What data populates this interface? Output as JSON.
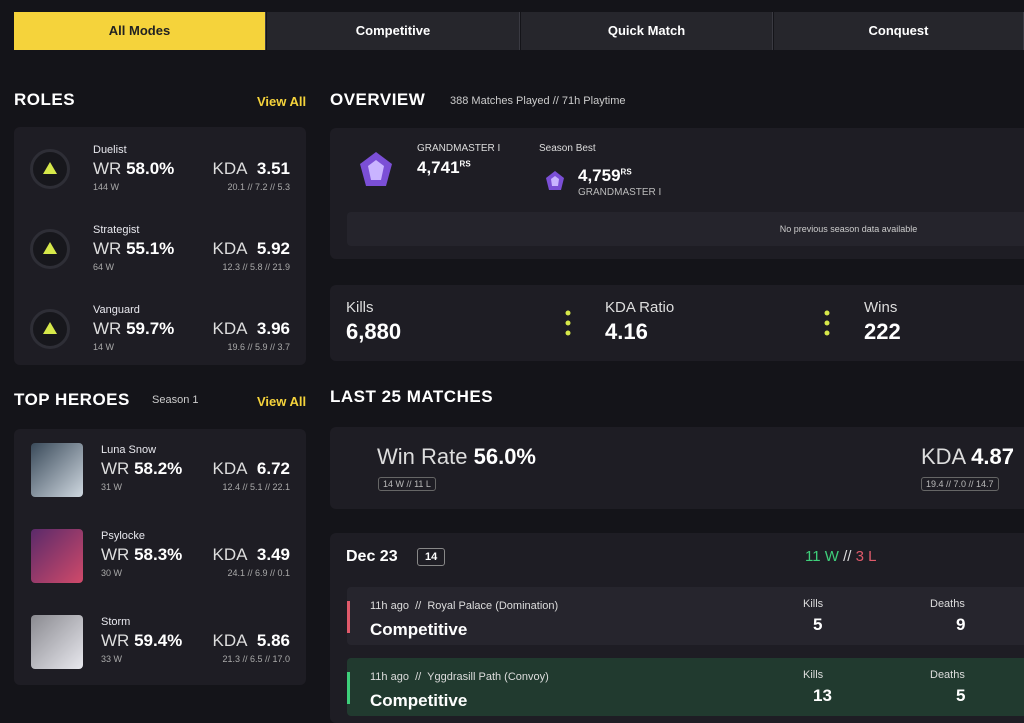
{
  "tabs": [
    "All Modes",
    "Competitive",
    "Quick Match",
    "Conquest"
  ],
  "labels": {
    "wr": "WR",
    "kda": "KDA",
    "sep": "//",
    "rs": "RS",
    "view_all": "View All"
  },
  "roles": {
    "title": "ROLES",
    "items": [
      {
        "name": "Duelist",
        "wr": "58.0%",
        "wins": "144 W",
        "kda": "3.51",
        "kda_breakdown": "20.1 // 7.2 // 5.3"
      },
      {
        "name": "Strategist",
        "wr": "55.1%",
        "wins": "64 W",
        "kda": "5.92",
        "kda_breakdown": "12.3 // 5.8 // 21.9"
      },
      {
        "name": "Vanguard",
        "wr": "59.7%",
        "wins": "14 W",
        "kda": "3.96",
        "kda_breakdown": "19.6 // 5.9 // 3.7"
      }
    ]
  },
  "top_heroes": {
    "title": "TOP HEROES",
    "season": "Season 1",
    "items": [
      {
        "name": "Luna Snow",
        "wr": "58.2%",
        "wins": "31 W",
        "kda": "6.72",
        "kda_breakdown": "12.4 // 5.1 // 22.1"
      },
      {
        "name": "Psylocke",
        "wr": "58.3%",
        "wins": "30 W",
        "kda": "3.49",
        "kda_breakdown": "24.1 // 6.9 // 0.1"
      },
      {
        "name": "Storm",
        "wr": "59.4%",
        "wins": "33 W",
        "kda": "5.86",
        "kda_breakdown": "21.3 // 6.5 // 17.0"
      }
    ]
  },
  "overview": {
    "title": "OVERVIEW",
    "subtitle": "388 Matches Played // 71h Playtime",
    "rank": "GRANDMASTER I",
    "rank_score": "4,741",
    "season_best_label": "Season Best",
    "season_best_score": "4,759",
    "season_best_rank": "GRANDMASTER I",
    "no_data": "No previous season data available",
    "stats": [
      {
        "label": "Kills",
        "value": "6,880"
      },
      {
        "label": "KDA Ratio",
        "value": "4.16"
      },
      {
        "label": "Wins",
        "value": "222"
      }
    ]
  },
  "last_matches": {
    "title": "LAST 25 MATCHES",
    "win_rate_label": "Win Rate",
    "win_rate": "56.0%",
    "wins": "14 W",
    "losses": "11 L",
    "kda": "4.87",
    "kda_breakdown": "19.4 // 7.0 // 14.7",
    "day": {
      "date": "Dec 23",
      "count": "14",
      "wins": "11 W",
      "losses": "3 L"
    },
    "matches": [
      {
        "time": "11h ago",
        "map": "Royal Palace (Domination)",
        "mode": "Competitive",
        "kills_label": "Kills",
        "kills": "5",
        "deaths_label": "Deaths",
        "deaths": "9"
      },
      {
        "time": "11h ago",
        "map": "Yggdrasill Path (Convoy)",
        "mode": "Competitive",
        "kills_label": "Kills",
        "kills": "13",
        "deaths_label": "Deaths",
        "deaths": "5"
      }
    ]
  }
}
